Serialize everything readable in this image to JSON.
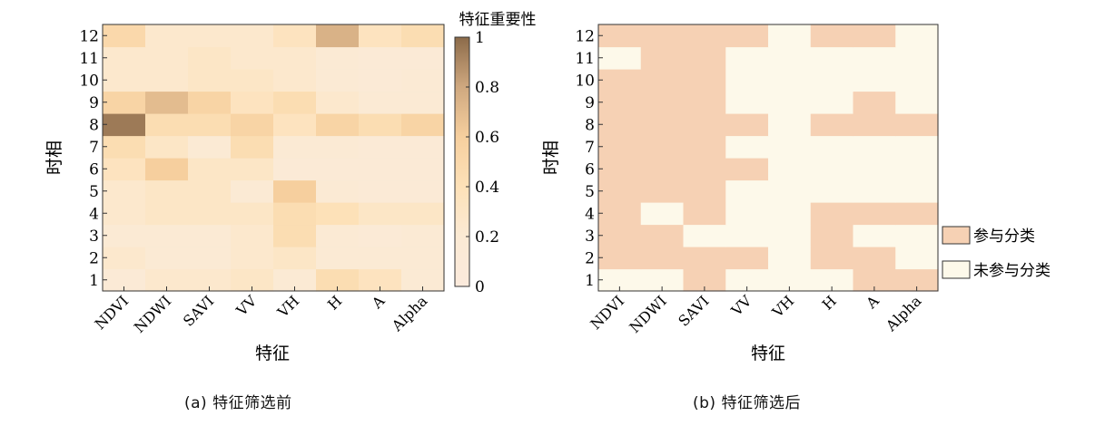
{
  "chart_data": [
    {
      "type": "heatmap",
      "xlabel": "特征",
      "ylabel": "时相",
      "categories": [
        "NDVI",
        "NDWI",
        "SAVI",
        "VV",
        "VH",
        "H",
        "A",
        "Alpha"
      ],
      "y": [
        1,
        2,
        3,
        4,
        5,
        6,
        7,
        8,
        9,
        10,
        11,
        12
      ],
      "values": [
        [
          0.15,
          0.25,
          0.25,
          0.3,
          0.2,
          0.45,
          0.35,
          0.2
        ],
        [
          0.25,
          0.2,
          0.2,
          0.25,
          0.3,
          0.2,
          0.2,
          0.2
        ],
        [
          0.2,
          0.2,
          0.2,
          0.25,
          0.45,
          0.2,
          0.15,
          0.2
        ],
        [
          0.25,
          0.3,
          0.3,
          0.3,
          0.45,
          0.4,
          0.3,
          0.3
        ],
        [
          0.25,
          0.3,
          0.3,
          0.2,
          0.6,
          0.2,
          0.15,
          0.15
        ],
        [
          0.35,
          0.6,
          0.3,
          0.3,
          0.15,
          0.15,
          0.15,
          0.15
        ],
        [
          0.45,
          0.3,
          0.2,
          0.45,
          0.2,
          0.2,
          0.15,
          0.15
        ],
        [
          0.95,
          0.45,
          0.45,
          0.55,
          0.35,
          0.55,
          0.45,
          0.55
        ],
        [
          0.55,
          0.7,
          0.55,
          0.35,
          0.45,
          0.25,
          0.2,
          0.2
        ],
        [
          0.25,
          0.25,
          0.3,
          0.3,
          0.25,
          0.2,
          0.15,
          0.2
        ],
        [
          0.25,
          0.25,
          0.3,
          0.25,
          0.25,
          0.2,
          0.15,
          0.15
        ],
        [
          0.5,
          0.25,
          0.25,
          0.25,
          0.35,
          0.75,
          0.35,
          0.45
        ]
      ],
      "colorbar": {
        "label": "特征重要性",
        "range": [
          0,
          1
        ],
        "ticks": [
          "0",
          "0.2",
          "0.4",
          "0.6",
          "0.8",
          "1"
        ]
      },
      "caption": "(a) 特征筛选前"
    },
    {
      "type": "heatmap",
      "xlabel": "特征",
      "ylabel": "时相",
      "categories": [
        "NDVI",
        "NDWI",
        "SAVI",
        "VV",
        "VH",
        "H",
        "A",
        "Alpha"
      ],
      "y": [
        1,
        2,
        3,
        4,
        5,
        6,
        7,
        8,
        9,
        10,
        11,
        12
      ],
      "values": [
        [
          0,
          0,
          1,
          0,
          0,
          0,
          1,
          1
        ],
        [
          1,
          1,
          1,
          1,
          0,
          1,
          1,
          0
        ],
        [
          1,
          1,
          0,
          0,
          0,
          1,
          0,
          0
        ],
        [
          1,
          0,
          1,
          0,
          0,
          1,
          1,
          1
        ],
        [
          1,
          1,
          1,
          0,
          0,
          0,
          0,
          0
        ],
        [
          1,
          1,
          1,
          1,
          0,
          0,
          0,
          0
        ],
        [
          1,
          1,
          1,
          0,
          0,
          0,
          0,
          0
        ],
        [
          1,
          1,
          1,
          1,
          0,
          1,
          1,
          1
        ],
        [
          1,
          1,
          1,
          0,
          0,
          0,
          1,
          0
        ],
        [
          1,
          1,
          1,
          0,
          0,
          0,
          0,
          0
        ],
        [
          0,
          1,
          1,
          0,
          0,
          0,
          0,
          0
        ],
        [
          1,
          1,
          1,
          1,
          0,
          1,
          1,
          0
        ]
      ],
      "legend": [
        {
          "label": "参与分类",
          "value": 1
        },
        {
          "label": "未参与分类",
          "value": 0
        }
      ],
      "caption": "(b) 特征筛选后"
    }
  ],
  "colors": {
    "participate": "#f6d1b4",
    "not_participate": "#fdf9ea",
    "scale": [
      "#fbeadc",
      "#fdebcd",
      "#fbdcaf",
      "#f3c99c",
      "#d0a880",
      "#8c6b4a"
    ]
  }
}
